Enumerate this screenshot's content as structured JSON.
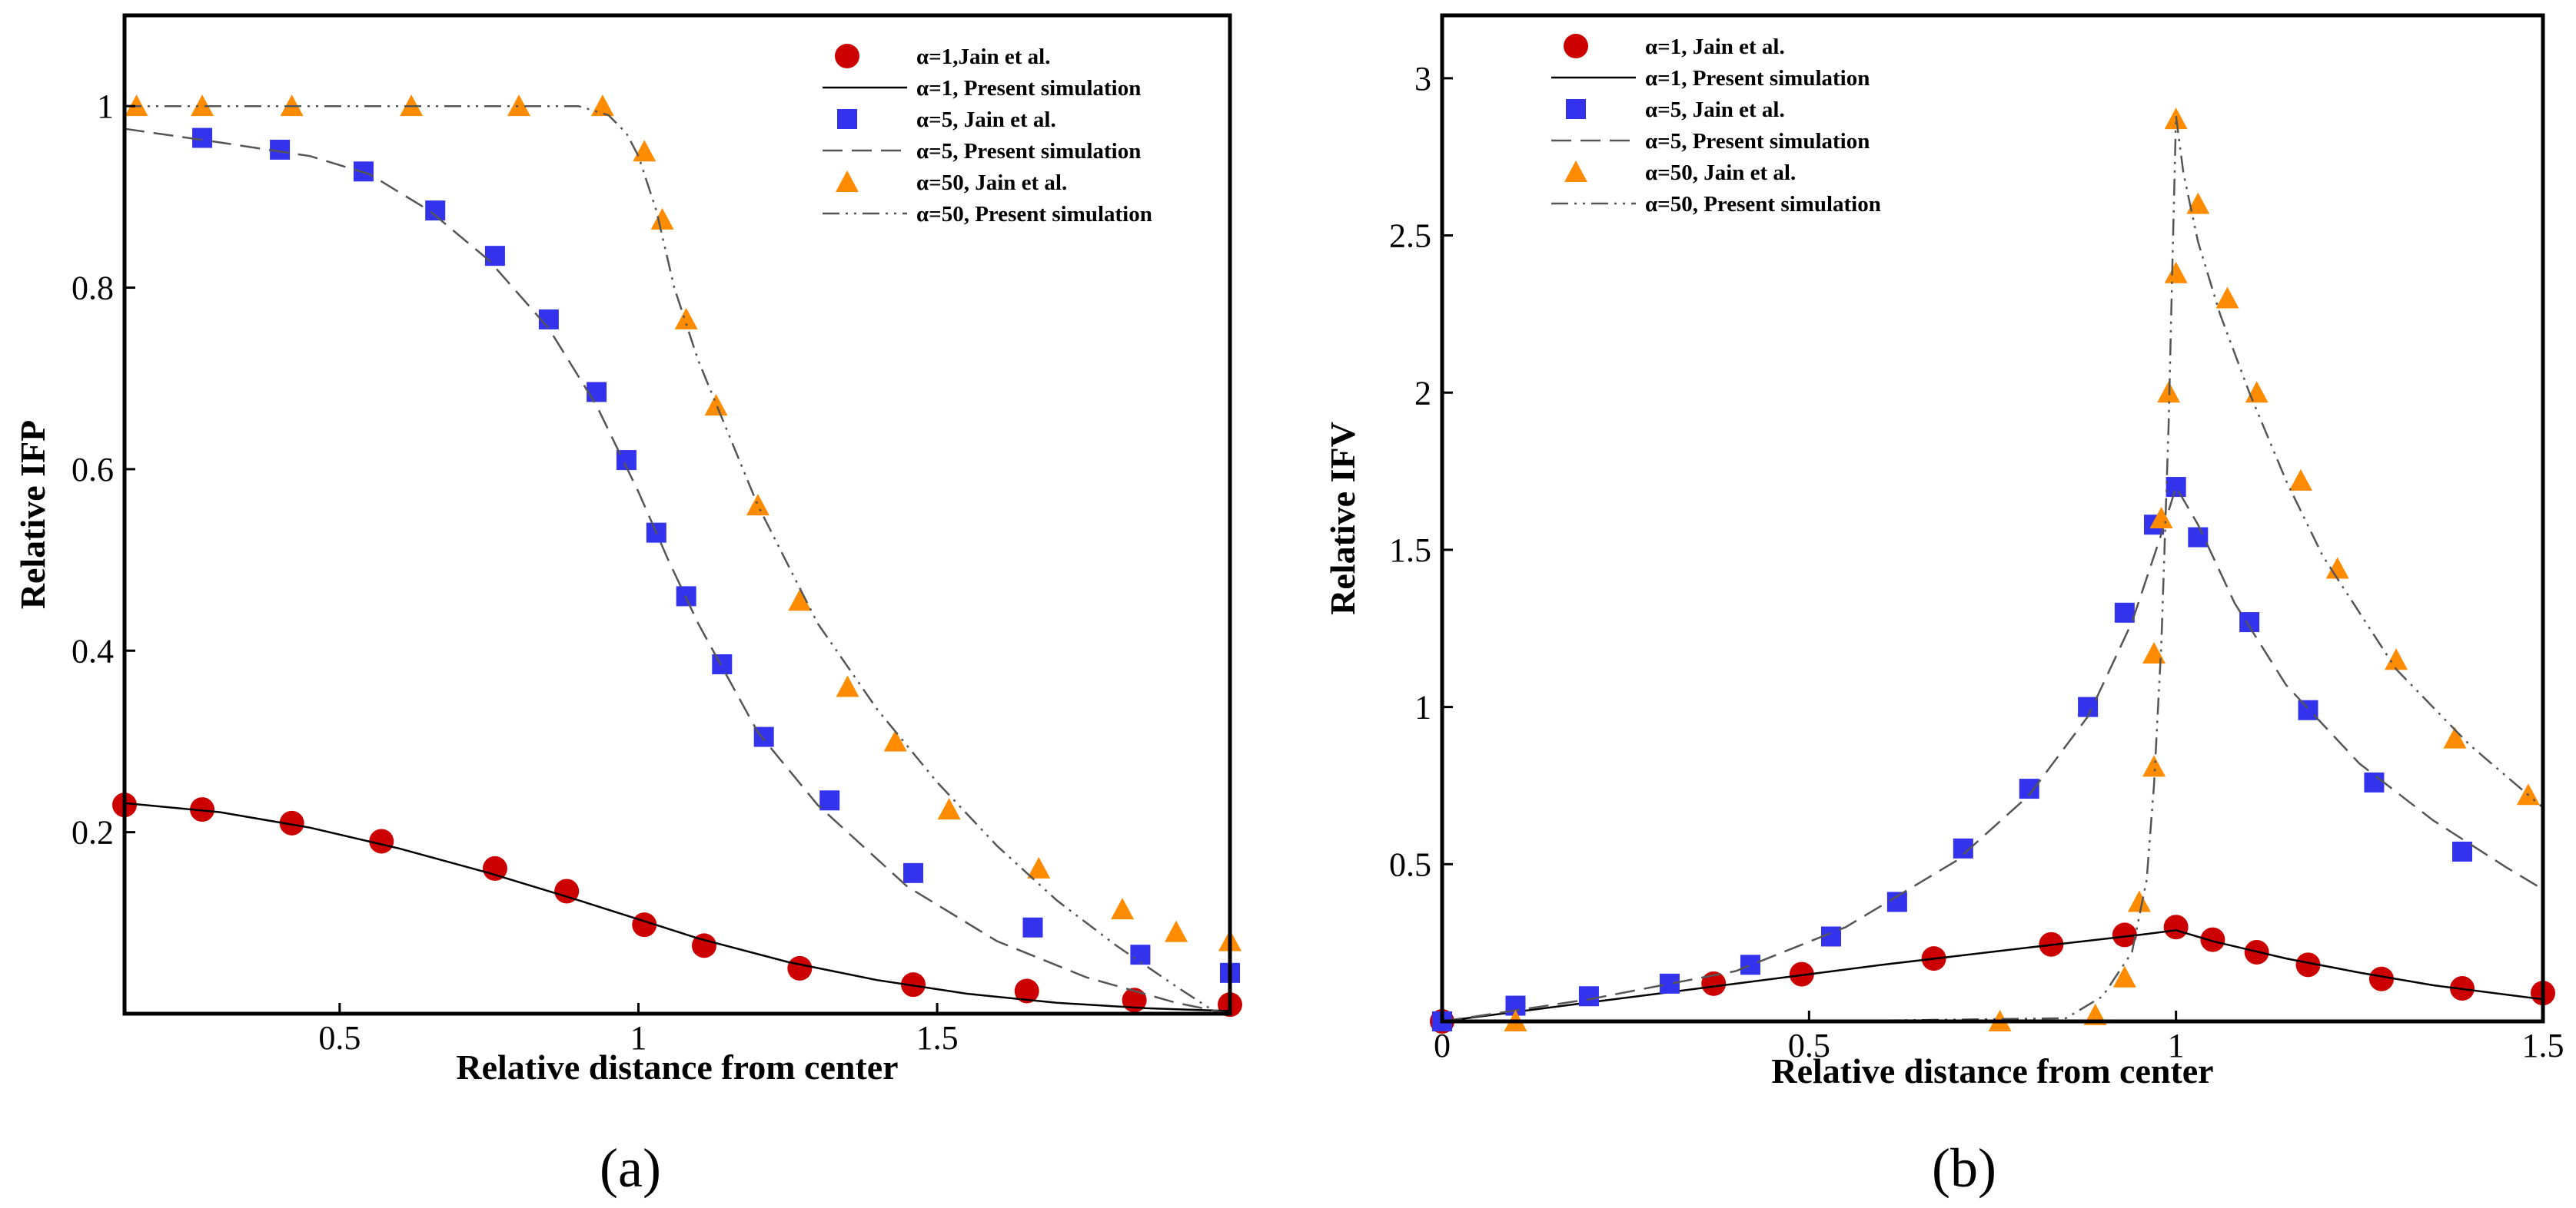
{
  "chart_data": [
    {
      "type": "scatter",
      "panel_label": "(a)",
      "xlabel": "Relative distance from center",
      "ylabel": "Relative IFP",
      "xlim": [
        0.14,
        1.99
      ],
      "ylim": [
        0.0,
        1.1
      ],
      "xticks": [
        0.5,
        1,
        1.5
      ],
      "xtick_labels": [
        "0.5",
        "1",
        "1.5"
      ],
      "yticks": [
        0.2,
        0.4,
        0.6,
        0.8,
        1
      ],
      "ytick_labels": [
        "0.2",
        "0.4",
        "0.6",
        "0.8",
        "1"
      ],
      "grid": false,
      "legend_position": "top-right",
      "series": [
        {
          "name": "α=1,Jain et al.",
          "kind": "markers",
          "marker": "circle",
          "color": "#cc0000",
          "x": [
            0.14,
            0.27,
            0.42,
            0.57,
            0.76,
            0.88,
            1.01,
            1.11,
            1.27,
            1.46,
            1.65,
            1.83,
            1.99
          ],
          "y": [
            0.23,
            0.225,
            0.21,
            0.19,
            0.16,
            0.135,
            0.098,
            0.075,
            0.05,
            0.032,
            0.025,
            0.015,
            0.01
          ]
        },
        {
          "name": "α=1, Present simulation",
          "kind": "line",
          "dash": "solid",
          "color": "#000000",
          "x": [
            0.14,
            0.3,
            0.45,
            0.6,
            0.75,
            0.9,
            1.0,
            1.1,
            1.25,
            1.4,
            1.55,
            1.7,
            1.85,
            1.99
          ],
          "y": [
            0.232,
            0.222,
            0.205,
            0.182,
            0.155,
            0.125,
            0.104,
            0.083,
            0.057,
            0.037,
            0.022,
            0.012,
            0.006,
            0.003
          ]
        },
        {
          "name": "α=5, Jain et al.",
          "kind": "markers",
          "marker": "square",
          "color": "#3333ee",
          "x": [
            0.27,
            0.4,
            0.54,
            0.66,
            0.76,
            0.85,
            0.93,
            0.98,
            1.03,
            1.08,
            1.14,
            1.21,
            1.32,
            1.46,
            1.66,
            1.84,
            1.99
          ],
          "y": [
            0.965,
            0.952,
            0.928,
            0.885,
            0.835,
            0.765,
            0.685,
            0.61,
            0.53,
            0.46,
            0.385,
            0.305,
            0.235,
            0.155,
            0.095,
            0.065,
            0.045
          ]
        },
        {
          "name": "α=5, Present simulation",
          "kind": "line",
          "dash": "dash",
          "color": "#555555",
          "x": [
            0.14,
            0.3,
            0.45,
            0.55,
            0.65,
            0.75,
            0.85,
            0.93,
            1.0,
            1.05,
            1.1,
            1.2,
            1.3,
            1.45,
            1.6,
            1.75,
            1.9,
            1.99
          ],
          "y": [
            0.975,
            0.96,
            0.945,
            0.925,
            0.885,
            0.83,
            0.755,
            0.67,
            0.575,
            0.5,
            0.43,
            0.31,
            0.23,
            0.14,
            0.08,
            0.04,
            0.012,
            0.0
          ]
        },
        {
          "name": "α=50, Jain et al.",
          "kind": "markers",
          "marker": "triangle",
          "color": "#ff8c00",
          "x": [
            0.16,
            0.27,
            0.42,
            0.62,
            0.8,
            0.94,
            1.01,
            1.04,
            1.08,
            1.13,
            1.2,
            1.27,
            1.35,
            1.43,
            1.52,
            1.67,
            1.81,
            1.9,
            1.99
          ],
          "y": [
            1.0,
            1.0,
            1.0,
            1.0,
            1.0,
            1.0,
            0.95,
            0.875,
            0.765,
            0.67,
            0.56,
            0.455,
            0.36,
            0.3,
            0.225,
            0.16,
            0.115,
            0.09,
            0.08
          ]
        },
        {
          "name": "α=50, Present simulation",
          "kind": "line",
          "dash": "dashdotdot",
          "color": "#555555",
          "x": [
            0.14,
            0.5,
            0.9,
            0.95,
            0.98,
            1.0,
            1.03,
            1.06,
            1.1,
            1.15,
            1.2,
            1.3,
            1.4,
            1.5,
            1.6,
            1.7,
            1.8,
            1.9,
            1.97
          ],
          "y": [
            1.0,
            1.0,
            1.0,
            0.99,
            0.97,
            0.945,
            0.885,
            0.8,
            0.72,
            0.64,
            0.56,
            0.43,
            0.335,
            0.255,
            0.185,
            0.125,
            0.075,
            0.03,
            0.0
          ]
        }
      ]
    },
    {
      "type": "scatter",
      "panel_label": "(b)",
      "xlabel": "Relative distance from center",
      "ylabel": "Relative IFV",
      "xlim": [
        0.0,
        1.5
      ],
      "ylim": [
        0.0,
        3.2
      ],
      "xticks": [
        0,
        0.5,
        1,
        1.5
      ],
      "xtick_labels": [
        "0",
        "0.5",
        "1",
        "1.5"
      ],
      "yticks": [
        0.5,
        1,
        1.5,
        2,
        2.5,
        3
      ],
      "ytick_labels": [
        "0.5",
        "1",
        "1.5",
        "2",
        "2.5",
        "3"
      ],
      "grid": false,
      "legend_position": "top-left",
      "series": [
        {
          "name": "α=1, Jain et al.",
          "kind": "markers",
          "marker": "circle",
          "color": "#cc0000",
          "x": [
            0.0,
            0.37,
            0.49,
            0.67,
            0.83,
            0.93,
            1.0,
            1.05,
            1.11,
            1.18,
            1.28,
            1.39,
            1.5
          ],
          "y": [
            0.0,
            0.12,
            0.15,
            0.2,
            0.245,
            0.275,
            0.3,
            0.26,
            0.22,
            0.18,
            0.135,
            0.105,
            0.09
          ]
        },
        {
          "name": "α=1, Present simulation",
          "kind": "line",
          "dash": "solid",
          "color": "#000000",
          "x": [
            0.0,
            0.2,
            0.4,
            0.6,
            0.8,
            0.95,
            1.0,
            1.05,
            1.15,
            1.25,
            1.35,
            1.5
          ],
          "y": [
            0.0,
            0.06,
            0.12,
            0.18,
            0.235,
            0.275,
            0.29,
            0.255,
            0.2,
            0.155,
            0.115,
            0.07
          ]
        },
        {
          "name": "α=5, Jain et al.",
          "kind": "markers",
          "marker": "square",
          "color": "#3333ee",
          "x": [
            0.0,
            0.1,
            0.2,
            0.31,
            0.42,
            0.53,
            0.62,
            0.71,
            0.8,
            0.88,
            0.93,
            0.97,
            1.0,
            1.03,
            1.1,
            1.18,
            1.27,
            1.39
          ],
          "y": [
            0.0,
            0.05,
            0.08,
            0.12,
            0.18,
            0.27,
            0.38,
            0.55,
            0.74,
            1.0,
            1.3,
            1.58,
            1.7,
            1.54,
            1.27,
            0.99,
            0.76,
            0.54
          ]
        },
        {
          "name": "α=5, Present simulation",
          "kind": "line",
          "dash": "dash",
          "color": "#555555",
          "x": [
            0.0,
            0.2,
            0.4,
            0.55,
            0.7,
            0.8,
            0.88,
            0.94,
            0.98,
            1.0,
            1.03,
            1.08,
            1.15,
            1.25,
            1.35,
            1.45,
            1.5
          ],
          "y": [
            0.0,
            0.07,
            0.16,
            0.3,
            0.51,
            0.72,
            0.97,
            1.27,
            1.55,
            1.7,
            1.58,
            1.33,
            1.07,
            0.82,
            0.64,
            0.49,
            0.42
          ]
        },
        {
          "name": "α=50, Jain et al.",
          "kind": "markers",
          "marker": "triangle",
          "color": "#ff8c00",
          "x": [
            0.1,
            0.76,
            0.89,
            0.93,
            0.95,
            0.97,
            0.97,
            0.98,
            0.99,
            1.0,
            1.0,
            1.03,
            1.07,
            1.11,
            1.17,
            1.22,
            1.3,
            1.38,
            1.48
          ],
          "y": [
            0.0,
            0.0,
            0.02,
            0.14,
            0.38,
            0.81,
            1.17,
            1.6,
            2.0,
            2.38,
            2.87,
            2.6,
            2.3,
            2.0,
            1.72,
            1.44,
            1.15,
            0.9,
            0.72
          ]
        },
        {
          "name": "α=50, Present simulation",
          "kind": "line",
          "dash": "dashdotdot",
          "color": "#555555",
          "x": [
            0.0,
            0.5,
            0.85,
            0.9,
            0.94,
            0.96,
            0.97,
            0.98,
            0.99,
            0.995,
            1.0,
            1.01,
            1.03,
            1.06,
            1.1,
            1.15,
            1.2,
            1.3,
            1.4,
            1.5
          ],
          "y": [
            0.0,
            0.0,
            0.01,
            0.08,
            0.22,
            0.45,
            0.75,
            1.2,
            1.9,
            2.4,
            2.88,
            2.7,
            2.48,
            2.25,
            2.0,
            1.72,
            1.48,
            1.12,
            0.88,
            0.68
          ]
        }
      ]
    }
  ]
}
